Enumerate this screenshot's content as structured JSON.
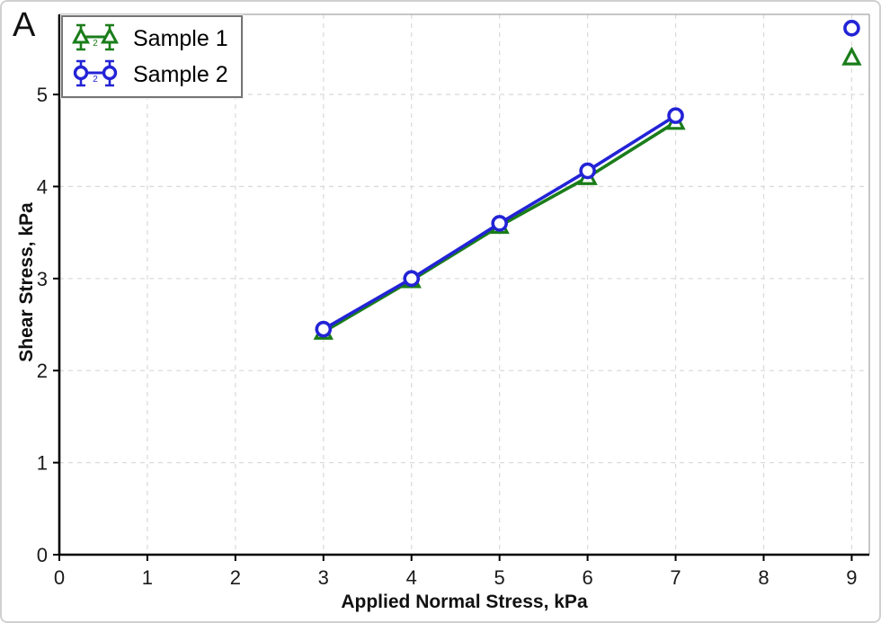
{
  "panel_label": "A",
  "legend": {
    "subscript": "2",
    "items": [
      {
        "label": "Sample 1",
        "marker": "triangle",
        "color": "#1a7d1a"
      },
      {
        "label": "Sample 2",
        "marker": "circle",
        "color": "#2323d6"
      }
    ]
  },
  "chart_data": {
    "type": "line",
    "title": "",
    "xlabel": "Applied Normal Stress, kPa",
    "ylabel": "Shear Stress, kPa",
    "xlim": [
      0,
      9.2
    ],
    "ylim": [
      0,
      5.87
    ],
    "xticks": [
      0,
      1,
      2,
      3,
      4,
      5,
      6,
      7,
      8,
      9
    ],
    "yticks": [
      0,
      1,
      2,
      3,
      4,
      5
    ],
    "grid": true,
    "legend_position": "top-left",
    "colors": {
      "grid": "#dcdcdc",
      "frame": "#b3b3b3",
      "axis": "#000000",
      "tick_label": "#1a1a1a"
    },
    "series": [
      {
        "name": "Sample 1",
        "marker": "triangle",
        "color": "#1a7d1a",
        "x": [
          3,
          4,
          5,
          6,
          7
        ],
        "y": [
          2.42,
          2.98,
          3.57,
          4.1,
          4.7
        ],
        "extra_points": [
          {
            "x": 9,
            "y": 5.4
          }
        ]
      },
      {
        "name": "Sample 2",
        "marker": "circle",
        "color": "#2323d6",
        "x": [
          3,
          4,
          5,
          6,
          7
        ],
        "y": [
          2.45,
          3.0,
          3.6,
          4.17,
          4.77
        ],
        "extra_points": [
          {
            "x": 9,
            "y": 5.72
          }
        ]
      }
    ]
  }
}
